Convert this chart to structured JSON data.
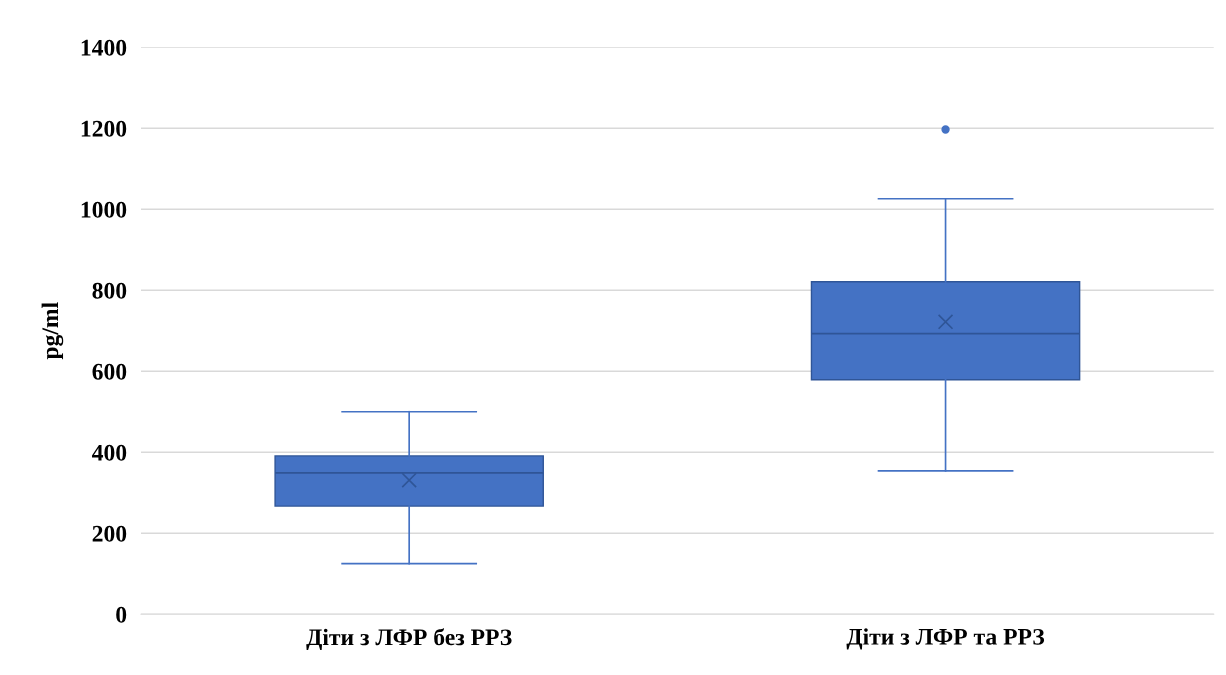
{
  "chart_data": {
    "type": "box",
    "ylabel": "pg/ml",
    "categories": [
      "Діти з ЛФР без РРЗ",
      "Діти з ЛФР та РРЗ"
    ],
    "boxes": [
      {
        "low": 125,
        "q1": 267,
        "median": 349,
        "q3": 391,
        "high": 500,
        "mean": 331
      },
      {
        "low": 354,
        "q1": 579,
        "median": 693,
        "q3": 821,
        "high": 1026,
        "mean": 722,
        "outliers": [
          1197
        ]
      }
    ],
    "color": "#4472c4",
    "ylim": [
      0,
      1400
    ],
    "yticks": [
      0,
      200,
      400,
      600,
      800,
      1000,
      1200,
      1400
    ],
    "grid": "y",
    "legend": false
  }
}
